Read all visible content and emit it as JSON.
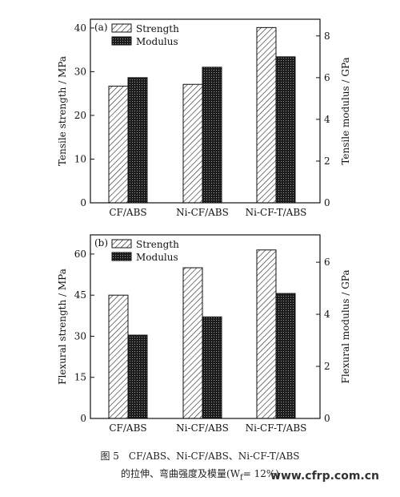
{
  "chart_data": [
    {
      "type": "bar",
      "panel_label": "(a)",
      "categories": [
        "CF/ABS",
        "Ni-CF/ABS",
        "Ni-CF-T/ABS"
      ],
      "series": [
        {
          "name": "Strength",
          "axis": "left",
          "values": [
            26.7,
            27.1,
            40.1
          ],
          "pattern": "hatch",
          "color": "#ffffff"
        },
        {
          "name": "Modulus",
          "axis": "right",
          "values": [
            6.0,
            6.5,
            7.0
          ],
          "pattern": "dense-dark",
          "color": "#2a2a2a"
        }
      ],
      "ylabel_left": "Tensile strength / MPa",
      "ylabel_right": "Tensile modulus / GPa",
      "ylim_left": [
        0,
        42
      ],
      "yticks_left": [
        0,
        10,
        20,
        30,
        40
      ],
      "ylim_right": [
        0,
        8.8
      ],
      "yticks_right": [
        0,
        2,
        4,
        6,
        8
      ],
      "legend_position": "top-left"
    },
    {
      "type": "bar",
      "panel_label": "(b)",
      "categories": [
        "CF/ABS",
        "Ni-CF/ABS",
        "Ni-CF-T/ABS"
      ],
      "series": [
        {
          "name": "Strength",
          "axis": "left",
          "values": [
            45,
            55,
            61.5
          ],
          "pattern": "hatch",
          "color": "#ffffff"
        },
        {
          "name": "Modulus",
          "axis": "right",
          "values": [
            3.2,
            3.9,
            4.8
          ],
          "pattern": "dense-dark",
          "color": "#2a2a2a"
        }
      ],
      "ylabel_left": "Flexural strength / MPa",
      "ylabel_right": "Flexural modulus / GPa",
      "ylim_left": [
        0,
        67
      ],
      "yticks_left": [
        0,
        15,
        30,
        45,
        60
      ],
      "ylim_right": [
        0,
        7.05
      ],
      "yticks_right": [
        0,
        2,
        4,
        6
      ],
      "legend_position": "top-left"
    }
  ],
  "caption": {
    "line1": "图 5　CF/ABS、Ni-CF/ABS、Ni-CF-T/ABS",
    "line2": "的拉伸、弯曲强度及模量(W",
    "line2_sub": "f",
    "line2_end": "= 12%)"
  },
  "watermark": "www.cfrp.com.cn"
}
